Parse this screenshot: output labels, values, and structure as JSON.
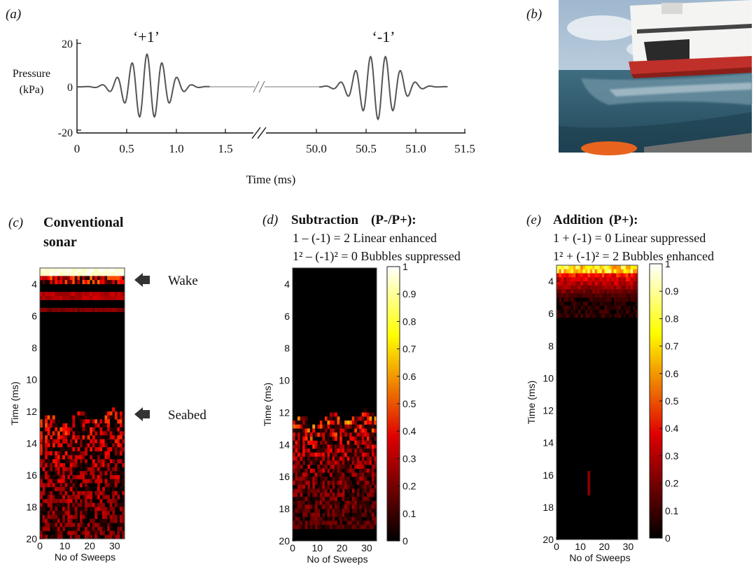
{
  "panel_labels": {
    "a": "(a)",
    "b": "(b)",
    "c": "(c)",
    "d": "(d)",
    "e": "(e)"
  },
  "panel_a": {
    "pulse_pos_label": "‘+1’",
    "pulse_neg_label": "‘-1’",
    "ylabel_line1": "Pressure",
    "ylabel_line2": "(kPa)",
    "xlabel": "Time (ms)",
    "y_ticks": [
      "20",
      "0",
      "-20"
    ],
    "x_ticks_left": [
      "0",
      "0.5",
      "1.0",
      "1.5"
    ],
    "x_ticks_right": [
      "50.0",
      "50.5",
      "51.0",
      "51.5"
    ]
  },
  "panel_b": {
    "description": "photo of ferry wake"
  },
  "panel_c": {
    "title_line1": "Conventional",
    "title_line2": "sonar",
    "arrow_wake": "Wake",
    "arrow_seabed": "Seabed"
  },
  "panel_d": {
    "title_bold": "Subtraction",
    "title_formula": "(P-/P+):",
    "line1": "1 – (-1) = 2  Linear enhanced",
    "line2": "1² – (-1)² = 0  Bubbles suppressed"
  },
  "panel_e": {
    "title_bold": "Addition",
    "title_formula": "(P+):",
    "line1": "1 + (-1) = 0 Linear suppressed",
    "line2": "1² + (-1)² = 2 Bubbles enhanced"
  },
  "heatmap_axes": {
    "ylabel": "Time (ms)",
    "xlabel": "No of Sweeps",
    "y_ticks": [
      "4",
      "6",
      "8",
      "10",
      "12",
      "14",
      "16",
      "18",
      "20"
    ],
    "x_ticks": [
      "0",
      "10",
      "20",
      "30"
    ]
  },
  "colorbar_ticks": [
    "1",
    "0.9",
    "0.8",
    "0.7",
    "0.6",
    "0.5",
    "0.4",
    "0.3",
    "0.2",
    "0.1",
    "0"
  ],
  "chart_data": [
    {
      "type": "line",
      "title": "",
      "xlabel": "Time (ms)",
      "ylabel": "Pressure (kPa)",
      "ylim": [
        -20,
        20
      ],
      "series": [
        {
          "name": "‘+1’",
          "x_range": [
            0,
            1.3
          ],
          "amplitude_kPa": 15,
          "centre_ms": 0.7,
          "cycles": 4
        },
        {
          "name": "‘-1’",
          "x_range": [
            50.0,
            51.3
          ],
          "amplitude_kPa": 15,
          "centre_ms": 50.7,
          "cycles": 4,
          "inverted": true
        }
      ]
    },
    {
      "type": "heatmap",
      "title": "Conventional sonar",
      "xlabel": "No of Sweeps",
      "ylabel": "Time (ms)",
      "xlim": [
        0,
        34
      ],
      "ylim": [
        3,
        20
      ],
      "features": [
        {
          "label": "Wake",
          "time_ms": [
            3,
            3.6
          ],
          "intensity": 1.0
        },
        {
          "label": "Seabed",
          "time_ms": [
            11.5,
            20
          ],
          "intensity": 0.5
        }
      ]
    },
    {
      "type": "heatmap",
      "title": "Subtraction (P-/P+)",
      "xlabel": "No of Sweeps",
      "ylabel": "Time (ms)",
      "xlim": [
        0,
        34
      ],
      "ylim": [
        3,
        20
      ],
      "colorbar": [
        0,
        1
      ],
      "features": [
        {
          "label": "Seabed",
          "time_ms": [
            11.5,
            19
          ],
          "intensity": 0.6
        }
      ]
    },
    {
      "type": "heatmap",
      "title": "Addition (P+)",
      "xlabel": "No of Sweeps",
      "ylabel": "Time (ms)",
      "xlim": [
        0,
        34
      ],
      "ylim": [
        3,
        20
      ],
      "colorbar": [
        0,
        1
      ],
      "features": [
        {
          "label": "Wake",
          "time_ms": [
            3,
            5
          ],
          "intensity": 0.7
        }
      ]
    }
  ],
  "colors": {
    "waveform": "#555555",
    "arrow": "#333333",
    "sea": "#2e5a6e",
    "hull_red": "#c0302a"
  }
}
